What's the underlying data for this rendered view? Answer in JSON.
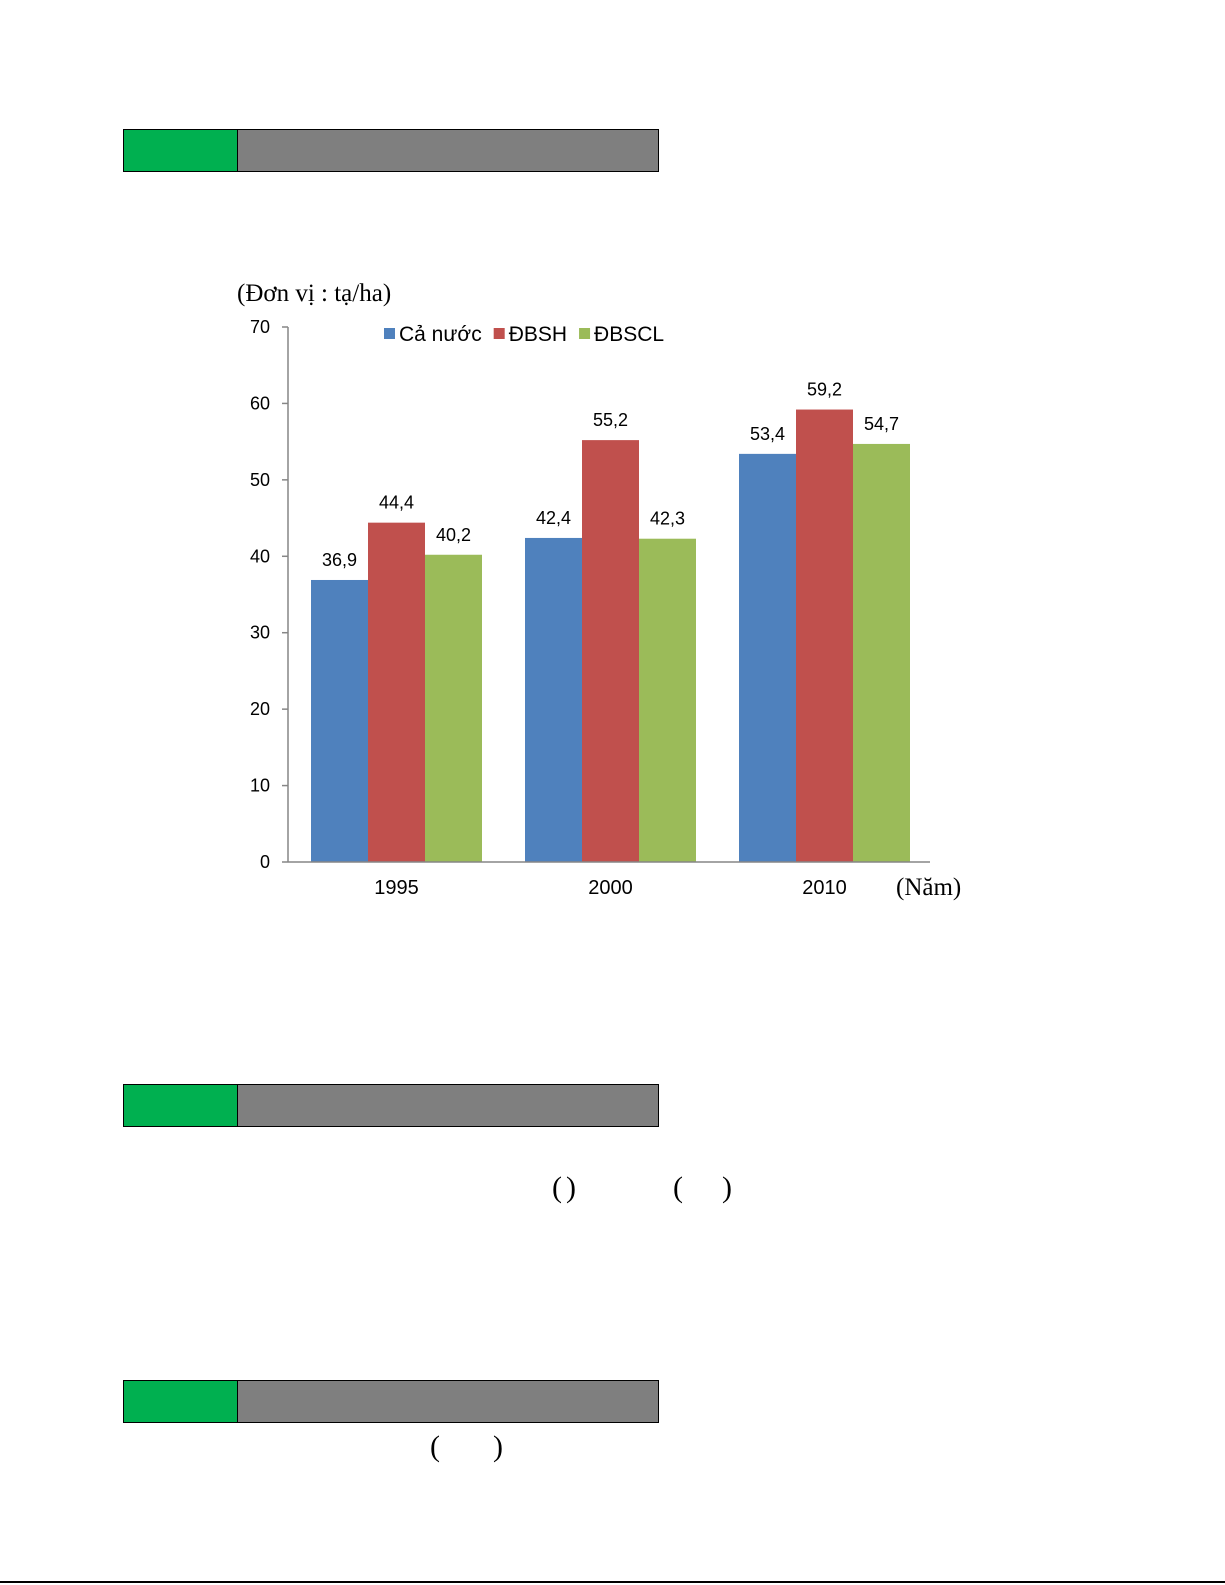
{
  "colors": {
    "green_block": "#00b050",
    "gray_block": "#7f7f7f",
    "axis": "#868686",
    "bottom_rule": "#000000"
  },
  "section_bars": [
    {
      "id": "bar1"
    },
    {
      "id": "bar2"
    },
    {
      "id": "bar3"
    }
  ],
  "parens": {
    "row1_a_open": "(",
    "row1_a_close": ")",
    "row1_b_open": "(",
    "row1_b_close": ")",
    "row2_open": "(",
    "row2_close": ")"
  },
  "chart_data": {
    "type": "bar",
    "unit_label": "(Đơn vị : tạ/ha)",
    "x_unit_label": "(Năm)",
    "categories": [
      "1995",
      "2000",
      "2010"
    ],
    "series": [
      {
        "name": "Cả nước",
        "color": "#4f81bd",
        "values": [
          36.9,
          42.4,
          53.4
        ],
        "labels": [
          "36,9",
          "42,4",
          "53,4"
        ]
      },
      {
        "name": "ĐBSH",
        "color": "#c0504d",
        "values": [
          44.4,
          55.2,
          59.2
        ],
        "labels": [
          "44,4",
          "55,2",
          "59,2"
        ]
      },
      {
        "name": "ĐBSCL",
        "color": "#9bbb59",
        "values": [
          40.2,
          42.3,
          54.7
        ],
        "labels": [
          "40,2",
          "42,3",
          "54,7"
        ]
      }
    ],
    "ylim": [
      0,
      70
    ],
    "yticks": [
      0,
      10,
      20,
      30,
      40,
      50,
      60,
      70
    ],
    "grid": false,
    "legend_position": "top"
  }
}
